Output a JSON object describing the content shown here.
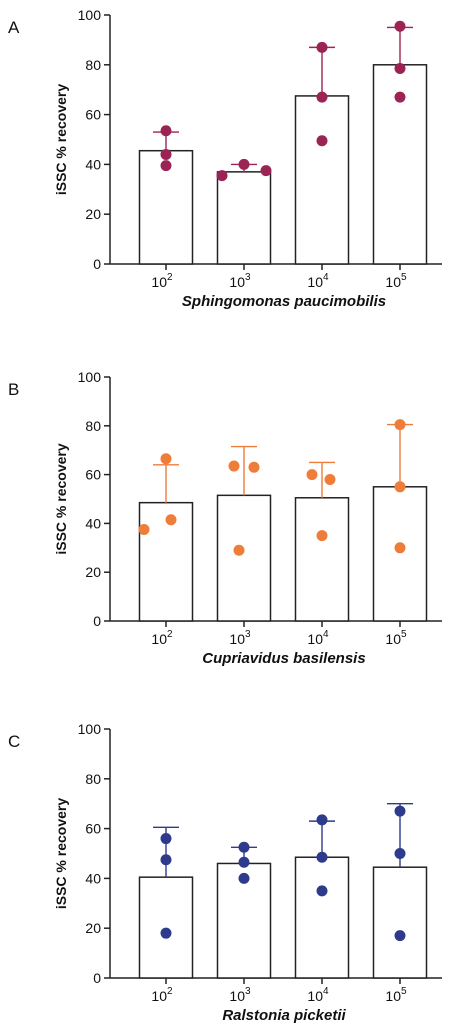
{
  "chart_data": [
    {
      "type": "bar",
      "panel_label": "A",
      "categories": [
        "10",
        "10",
        "10",
        "10"
      ],
      "category_exponents": [
        "2",
        "3",
        "4",
        "5"
      ],
      "xlabel": "Sphingomonas paucimobilis",
      "ylabel": "iSSC % recovery",
      "ylim": [
        0,
        100
      ],
      "yticks": [
        "0",
        "20",
        "40",
        "60",
        "80",
        "100"
      ],
      "values": [
        45.5,
        37,
        67.5,
        80
      ],
      "error_upper": [
        53,
        40,
        87,
        95
      ],
      "points": [
        [
          53.5,
          44,
          39.5
        ],
        [
          35.5,
          40,
          37.5
        ],
        [
          87,
          67,
          49.5
        ],
        [
          95.5,
          78.5,
          67
        ]
      ],
      "color": "#9B2454"
    },
    {
      "type": "bar",
      "panel_label": "B",
      "categories": [
        "10",
        "10",
        "10",
        "10"
      ],
      "category_exponents": [
        "2",
        "3",
        "4",
        "5"
      ],
      "xlabel": "Cupriavidus basilensis",
      "ylabel": "iSSC % recovery",
      "ylim": [
        0,
        100
      ],
      "yticks": [
        "0",
        "20",
        "40",
        "60",
        "80",
        "100"
      ],
      "values": [
        48.5,
        51.5,
        50.5,
        55
      ],
      "error_upper": [
        64,
        71.5,
        65,
        80.5
      ],
      "points": [
        [
          66.5,
          37.5,
          41.5
        ],
        [
          63.5,
          63,
          29
        ],
        [
          60,
          58,
          35
        ],
        [
          80.5,
          55,
          30
        ]
      ],
      "color": "#EE7D3A"
    },
    {
      "type": "bar",
      "panel_label": "C",
      "categories": [
        "10",
        "10",
        "10",
        "10"
      ],
      "category_exponents": [
        "2",
        "3",
        "4",
        "5"
      ],
      "xlabel": "Ralstonia picketii",
      "ylabel": "iSSC % recovery",
      "ylim": [
        0,
        100
      ],
      "yticks": [
        "0",
        "20",
        "40",
        "60",
        "80",
        "100"
      ],
      "values": [
        40.5,
        46,
        48.5,
        44.5
      ],
      "error_upper": [
        60.5,
        52.5,
        63,
        70
      ],
      "points": [
        [
          56,
          47.5,
          18
        ],
        [
          52.5,
          46.5,
          40
        ],
        [
          63.5,
          48.5,
          35
        ],
        [
          67,
          50,
          17
        ]
      ],
      "color": "#2E3A8C"
    }
  ]
}
